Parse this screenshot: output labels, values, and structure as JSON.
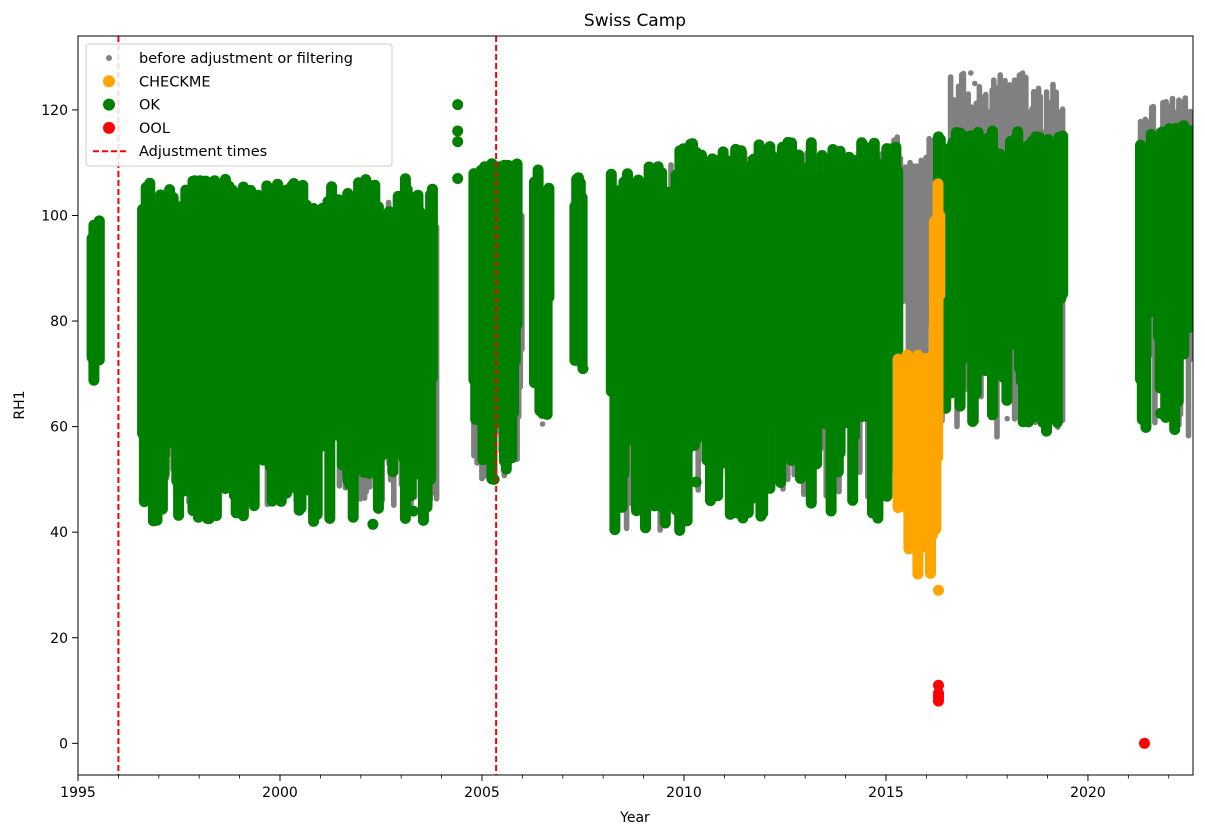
{
  "chart_data": {
    "type": "scatter",
    "title": "Swiss Camp",
    "xlabel": "Year",
    "ylabel": "RH1",
    "xlim": [
      1995,
      2022.6
    ],
    "ylim": [
      -6,
      134
    ],
    "x_ticks": [
      1995,
      2000,
      2005,
      2010,
      2015,
      2020
    ],
    "y_ticks": [
      0,
      20,
      40,
      60,
      80,
      100,
      120
    ],
    "legend_position": "top-left",
    "grid": false,
    "colors": {
      "before": "#808080",
      "checkme": "#ffa500",
      "ok": "#008000",
      "ool": "#ff0000",
      "adjustment": "#ff0000"
    },
    "legend": [
      {
        "key": "before",
        "label": "before adjustment or filtering",
        "marker": "small-dot"
      },
      {
        "key": "checkme",
        "label": "CHECKME",
        "marker": "dot"
      },
      {
        "key": "ok",
        "label": "OK",
        "marker": "dot"
      },
      {
        "key": "ool",
        "label": "OOL",
        "marker": "dot"
      },
      {
        "key": "adjustment",
        "label": "Adjustment times",
        "marker": "dashed-line"
      }
    ],
    "adjustment_times": [
      1996.0,
      2005.35
    ],
    "series": [
      {
        "name": "before adjustment or filtering",
        "key": "before",
        "ranges": [
          {
            "x0": 1996.6,
            "x1": 2003.8,
            "ymin": 45,
            "ymax": 100.5
          },
          {
            "x0": 2001.5,
            "x1": 2003.9,
            "ymin": 45,
            "ymax": 104
          },
          {
            "x0": 2004.8,
            "x1": 2006.0,
            "ymin": 50,
            "ymax": 102
          },
          {
            "x0": 2008.5,
            "x1": 2009.6,
            "ymin": 40,
            "ymax": 103
          },
          {
            "x0": 2009.6,
            "x1": 2015.0,
            "ymin": 46,
            "ymax": 112
          },
          {
            "x0": 2015.0,
            "x1": 2016.6,
            "ymin": 60,
            "ymax": 115
          },
          {
            "x0": 2016.6,
            "x1": 2019.4,
            "ymin": 58,
            "ymax": 127
          },
          {
            "x0": 2021.3,
            "x1": 2022.6,
            "ymin": 58,
            "ymax": 122.5
          }
        ],
        "points": [
          [
            2017.1,
            127
          ],
          [
            2017.2,
            125
          ],
          [
            2017.3,
            120
          ],
          [
            2014.7,
            105
          ],
          [
            2006.5,
            60.5
          ],
          [
            2021.4,
            64.5
          ],
          [
            2021.4,
            67
          ],
          [
            2011.8,
            54.5
          ],
          [
            2012.8,
            54.5
          ],
          [
            2018.0,
            61.5
          ]
        ]
      },
      {
        "name": "OK",
        "key": "ok",
        "ranges": [
          {
            "x0": 1995.35,
            "x1": 1995.55,
            "ymin": 68,
            "ymax": 100
          },
          {
            "x0": 1996.6,
            "x1": 2003.8,
            "ymin": 42,
            "ymax": 107
          },
          {
            "x0": 2004.8,
            "x1": 2005.9,
            "ymin": 50,
            "ymax": 111
          },
          {
            "x0": 2006.3,
            "x1": 2006.7,
            "ymin": 62,
            "ymax": 109
          },
          {
            "x0": 2007.3,
            "x1": 2007.5,
            "ymin": 71,
            "ymax": 108
          },
          {
            "x0": 2008.2,
            "x1": 2009.9,
            "ymin": 40,
            "ymax": 110
          },
          {
            "x0": 2009.9,
            "x1": 2015.3,
            "ymin": 42,
            "ymax": 114
          },
          {
            "x0": 2016.3,
            "x1": 2019.4,
            "ymin": 58,
            "ymax": 116
          },
          {
            "x0": 2021.3,
            "x1": 2022.6,
            "ymin": 59,
            "ymax": 117
          }
        ],
        "points": [
          [
            2004.4,
            121
          ],
          [
            2004.4,
            116
          ],
          [
            2004.4,
            114
          ],
          [
            2004.4,
            107
          ],
          [
            2003.3,
            44
          ],
          [
            2002.3,
            41.5
          ],
          [
            2010.3,
            49.5
          ],
          [
            2013.0,
            56.5
          ],
          [
            2006.5,
            62.5
          ],
          [
            2007.5,
            71
          ],
          [
            2005.3,
            50
          ],
          [
            2021.8,
            62.5
          ]
        ]
      },
      {
        "name": "CHECKME",
        "key": "checkme",
        "ranges": [
          {
            "x0": 2015.3,
            "x1": 2016.3,
            "ymin": 32,
            "ymax": 74
          },
          {
            "x0": 2016.2,
            "x1": 2016.35,
            "ymin": 60,
            "ymax": 106
          }
        ],
        "points": [
          [
            2016.3,
            29
          ]
        ]
      },
      {
        "name": "OOL",
        "key": "ool",
        "ranges": [],
        "points": [
          [
            2016.3,
            11
          ],
          [
            2016.3,
            9.5
          ],
          [
            2016.3,
            9
          ],
          [
            2016.3,
            8.5
          ],
          [
            2016.3,
            8
          ],
          [
            2021.4,
            0
          ]
        ]
      }
    ]
  }
}
